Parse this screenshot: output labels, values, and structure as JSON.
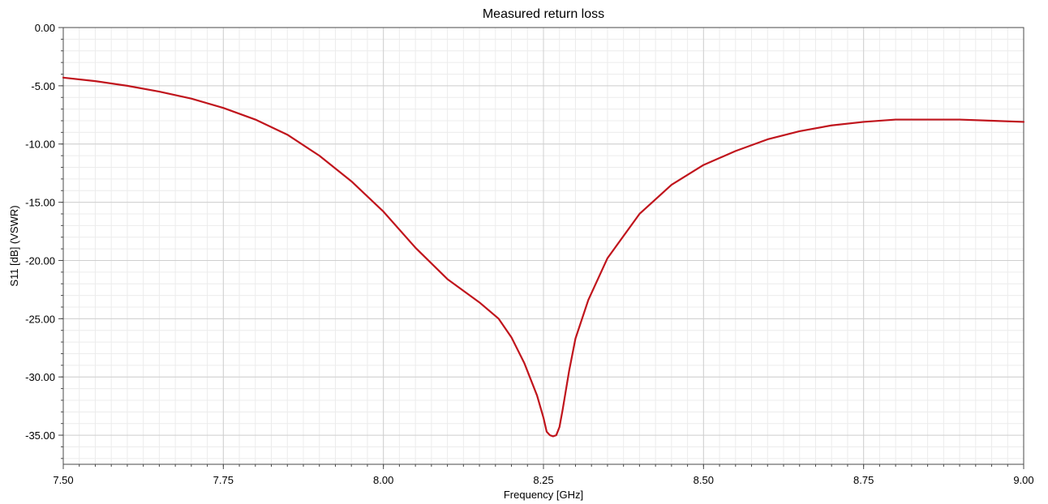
{
  "chart_data": {
    "type": "line",
    "title": "Measured return loss",
    "xlabel": "Frequency [GHz]",
    "ylabel": "S11 [dB] (VSWR)",
    "xlim": [
      7.5,
      9.0
    ],
    "ylim": [
      -37.5,
      0.0
    ],
    "x_ticks": [
      7.5,
      7.75,
      8.0,
      8.25,
      8.5,
      8.75,
      9.0
    ],
    "x_tick_labels": [
      "7.50",
      "7.75",
      "8.00",
      "8.25",
      "8.50",
      "8.75",
      "9.00"
    ],
    "y_ticks": [
      0,
      -5,
      -10,
      -15,
      -20,
      -25,
      -30,
      -35
    ],
    "y_tick_labels": [
      "0.00",
      "-5.00",
      "-10.00",
      "-15.00",
      "-20.00",
      "-25.00",
      "-30.00",
      "-35.00"
    ],
    "grid": true,
    "legend": false,
    "series": [
      {
        "color": "#c0141c",
        "x": [
          7.5,
          7.55,
          7.6,
          7.65,
          7.7,
          7.75,
          7.8,
          7.85,
          7.9,
          7.95,
          8.0,
          8.05,
          8.1,
          8.15,
          8.18,
          8.2,
          8.22,
          8.24,
          8.25,
          8.255,
          8.26,
          8.265,
          8.27,
          8.275,
          8.28,
          8.29,
          8.3,
          8.32,
          8.35,
          8.4,
          8.45,
          8.5,
          8.55,
          8.6,
          8.65,
          8.7,
          8.75,
          8.8,
          8.85,
          8.9,
          8.95,
          9.0
        ],
        "values": [
          -4.3,
          -4.6,
          -5.0,
          -5.5,
          -6.1,
          -6.9,
          -7.9,
          -9.2,
          -11.0,
          -13.2,
          -15.8,
          -18.9,
          -21.6,
          -23.6,
          -25.0,
          -26.6,
          -28.8,
          -31.6,
          -33.5,
          -34.7,
          -35.0,
          -35.1,
          -35.0,
          -34.3,
          -32.8,
          -29.5,
          -26.7,
          -23.4,
          -19.8,
          -16.0,
          -13.5,
          -11.8,
          -10.6,
          -9.6,
          -8.9,
          -8.4,
          -8.1,
          -7.9,
          -7.9,
          -7.9,
          -8.0,
          -8.1
        ]
      }
    ]
  }
}
